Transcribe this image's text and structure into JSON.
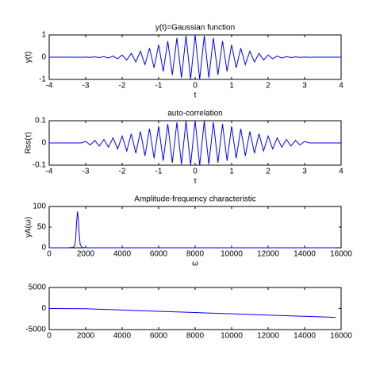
{
  "chart_data": [
    {
      "type": "line",
      "title": "y(t)=Gaussian function",
      "x_label": "t",
      "y_label": "y(t)",
      "color": "#0000ff",
      "x": [
        -4,
        -3.875,
        -3.75,
        -3.625,
        -3.5,
        -3.375,
        -3.25,
        -3.125,
        -3,
        -2.875,
        -2.75,
        -2.625,
        -2.5,
        -2.375,
        -2.25,
        -2.125,
        -2,
        -1.875,
        -1.75,
        -1.625,
        -1.5,
        -1.375,
        -1.25,
        -1.125,
        -1,
        -0.875,
        -0.75,
        -0.625,
        -0.5,
        -0.375,
        -0.25,
        -0.125,
        0,
        0.125,
        0.25,
        0.375,
        0.5,
        0.625,
        0.75,
        0.875,
        1,
        1.125,
        1.25,
        1.375,
        1.5,
        1.625,
        1.75,
        1.875,
        2,
        2.125,
        2.25,
        2.375,
        2.5,
        2.625,
        2.75,
        2.875,
        3,
        3.125,
        3.25,
        3.375,
        3.5,
        3.625,
        3.75,
        3.875,
        4
      ],
      "values": [
        0,
        0,
        0,
        0,
        0.001,
        -0.001,
        0.002,
        -0.003,
        0.005,
        -0.008,
        0.012,
        -0.018,
        0.027,
        -0.038,
        0.053,
        -0.073,
        0.098,
        -0.13,
        0.169,
        -0.216,
        0.271,
        -0.334,
        0.404,
        -0.48,
        0.56,
        -0.641,
        0.722,
        -0.797,
        0.865,
        -0.922,
        0.964,
        -0.991,
        1,
        -0.991,
        0.964,
        -0.922,
        0.865,
        -0.797,
        0.722,
        -0.641,
        0.56,
        -0.48,
        0.404,
        -0.334,
        0.271,
        -0.216,
        0.169,
        -0.13,
        0.098,
        -0.073,
        0.053,
        -0.038,
        0.027,
        -0.018,
        0.012,
        -0.008,
        0.005,
        -0.003,
        0.002,
        -0.001,
        0.001,
        0,
        0,
        0,
        0
      ],
      "xlim": [
        -4,
        4
      ],
      "xticks": [
        -4,
        -3,
        -2,
        -1,
        0,
        1,
        2,
        3,
        4
      ],
      "ylim": [
        -1,
        1
      ],
      "yticks": [
        -1,
        0,
        1
      ]
    },
    {
      "type": "line",
      "title": "auto-correlation",
      "x_label": "τ",
      "y_label": "Rss(τ)",
      "color": "#0000ff",
      "x": [
        -4,
        -3.875,
        -3.75,
        -3.625,
        -3.5,
        -3.375,
        -3.25,
        -3.125,
        -3,
        -2.875,
        -2.75,
        -2.625,
        -2.5,
        -2.375,
        -2.25,
        -2.125,
        -2,
        -1.875,
        -1.75,
        -1.625,
        -1.5,
        -1.375,
        -1.25,
        -1.125,
        -1,
        -0.875,
        -0.75,
        -0.625,
        -0.5,
        -0.375,
        -0.25,
        -0.125,
        0,
        0.125,
        0.25,
        0.375,
        0.5,
        0.625,
        0.75,
        0.875,
        1,
        1.125,
        1.25,
        1.375,
        1.5,
        1.625,
        1.75,
        1.875,
        2,
        2.125,
        2.25,
        2.375,
        2.5,
        2.625,
        2.75,
        2.875,
        3,
        3.125,
        3.25,
        3.375,
        3.5,
        3.625,
        3.75,
        3.875,
        4
      ],
      "values": [
        0,
        0,
        0,
        0,
        0,
        0,
        0,
        0,
        0.007,
        -0.009,
        0.011,
        -0.014,
        0.016,
        -0.019,
        0.023,
        -0.027,
        0.031,
        -0.036,
        0.041,
        -0.046,
        0.052,
        -0.058,
        0.064,
        -0.069,
        0.075,
        -0.08,
        0.085,
        -0.089,
        0.093,
        -0.096,
        0.098,
        -0.1,
        0.1,
        -0.1,
        0.098,
        -0.096,
        0.093,
        -0.089,
        0.085,
        -0.08,
        0.075,
        -0.069,
        0.064,
        -0.058,
        0.052,
        -0.046,
        0.041,
        -0.036,
        0.031,
        -0.027,
        0.023,
        -0.019,
        0.016,
        -0.014,
        0.011,
        -0.009,
        0.007,
        0,
        0,
        0,
        0,
        0,
        0,
        0,
        0
      ],
      "xlim": [
        -4,
        4
      ],
      "xticks": [
        -4,
        -3,
        -2,
        -1,
        0,
        1,
        2,
        3,
        4
      ],
      "ylim": [
        -0.1,
        0.1
      ],
      "yticks": [
        -0.1,
        0,
        0.1
      ]
    },
    {
      "type": "line",
      "title": "Amplitude-frequency characteristic",
      "x_label": "ω",
      "y_label": "yA(ω)",
      "color": "#0000ff",
      "x": [
        0,
        1000,
        1300,
        1400,
        1450,
        1500,
        1550,
        1600,
        1650,
        1700,
        1800,
        2000,
        15700
      ],
      "values": [
        0,
        0,
        1,
        5,
        20,
        60,
        88,
        70,
        30,
        8,
        1,
        0,
        0
      ],
      "xlim": [
        0,
        16000
      ],
      "xticks": [
        0,
        2000,
        4000,
        6000,
        8000,
        10000,
        12000,
        14000,
        16000
      ],
      "ylim": [
        0,
        100
      ],
      "yticks": [
        0,
        50,
        100
      ]
    },
    {
      "type": "line",
      "color": "#0000ff",
      "x": [
        0,
        2000,
        4000,
        6000,
        8000,
        10000,
        12000,
        14000,
        15700
      ],
      "values": [
        0,
        -50,
        -350,
        -650,
        -950,
        -1250,
        -1550,
        -1850,
        -2100
      ],
      "xlim": [
        0,
        16000
      ],
      "xticks": [
        0,
        2000,
        4000,
        6000,
        8000,
        10000,
        12000,
        14000,
        16000
      ],
      "ylim": [
        -5000,
        5000
      ],
      "yticks": [
        -5000,
        0,
        5000
      ]
    }
  ]
}
